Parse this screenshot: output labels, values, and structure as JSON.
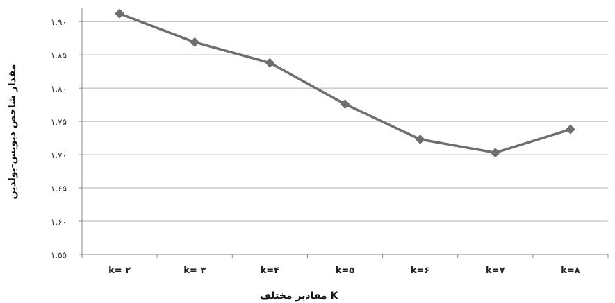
{
  "chart_data": {
    "type": "line",
    "title": "",
    "xlabel": "مقادیر مختلف K",
    "ylabel": "مقدار شاخص دیویس-بولدین",
    "categories": [
      "k= ۲",
      "k= ۳",
      "k=۴",
      "k=۵",
      "k=۶",
      "k=۷",
      "k=۸"
    ],
    "series": [
      {
        "values": [
          1.912,
          1.869,
          1.838,
          1.776,
          1.723,
          1.703,
          1.738
        ]
      }
    ],
    "ylim": [
      1.55,
      1.92
    ],
    "yticks": [
      1.55,
      1.6,
      1.65,
      1.7,
      1.75,
      1.8,
      1.85,
      1.9
    ],
    "ytick_labels": [
      "۱.۵۵",
      "۱.۶۰",
      "۱.۶۵",
      "۱.۷۰",
      "۱.۷۵",
      "۱.۸۰",
      "۱.۸۵",
      "۱.۹۰"
    ],
    "grid": true,
    "line_color": "#6e6e6e",
    "grid_color": "#b0b0b0",
    "marker": "diamond"
  }
}
